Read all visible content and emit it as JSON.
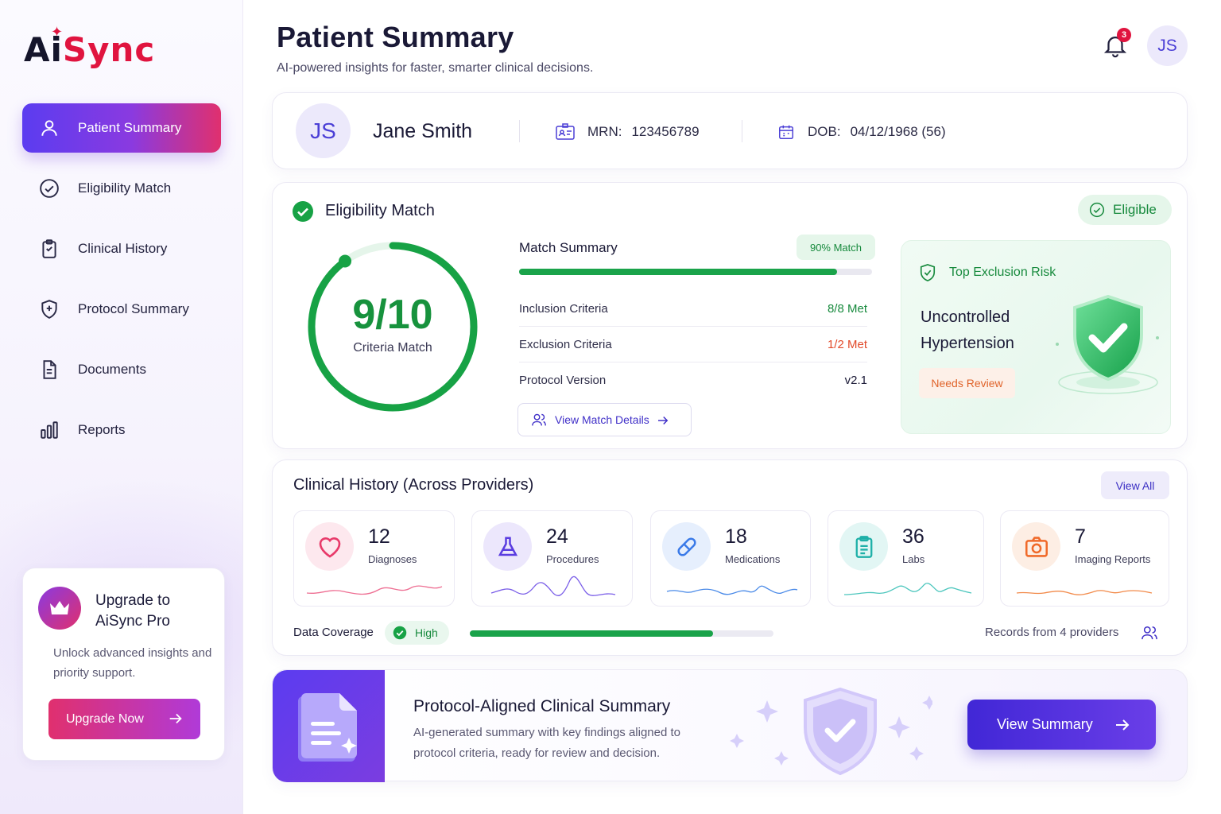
{
  "brand": {
    "ai": "Ai",
    "sync": "Sync",
    "spark": "✦"
  },
  "nav": [
    {
      "label": "Patient Summary",
      "icon": "user-icon",
      "active": true
    },
    {
      "label": "Eligibility Match",
      "icon": "check-circle-icon"
    },
    {
      "label": "Clinical History",
      "icon": "clipboard-icon"
    },
    {
      "label": "Protocol Summary",
      "icon": "shield-icon"
    },
    {
      "label": "Documents",
      "icon": "document-icon"
    },
    {
      "label": "Reports",
      "icon": "bar-chart-icon"
    }
  ],
  "upgrade": {
    "title": "Upgrade to AiSync Pro",
    "desc": "Unlock advanced insights and priority support.",
    "button": "Upgrade Now"
  },
  "header": {
    "title": "Patient Summary",
    "subtitle": "AI-powered insights for faster, smarter clinical decisions.",
    "notification_count": "3",
    "user_initials": "JS"
  },
  "patient": {
    "initials": "JS",
    "name": "Jane Smith",
    "mrn_label": "MRN:",
    "mrn": "123456789",
    "dob_label": "DOB:",
    "dob": "04/12/1968 (56)"
  },
  "eligibility": {
    "title": "Eligibility Match",
    "status": "Eligible",
    "score": "9/10",
    "score_fraction": 0.9,
    "score_label": "Criteria Match",
    "summary_title": "Match Summary",
    "match_badge": "90% Match",
    "match_percent": 90,
    "criteria": [
      {
        "label": "Inclusion Criteria",
        "value": "8/8 Met",
        "tone": "green"
      },
      {
        "label": "Exclusion Criteria",
        "value": "1/2 Met",
        "tone": "red"
      },
      {
        "label": "Protocol Version",
        "value": "v2.1",
        "tone": "dark"
      }
    ],
    "details_button": "View Match Details",
    "risk_title": "Top Exclusion Risk",
    "risk_condition": "Uncontrolled Hypertension",
    "risk_badge": "Needs Review"
  },
  "history": {
    "title": "Clinical History (Across Providers)",
    "view_all": "View All",
    "stats": [
      {
        "count": "12",
        "label": "Diagnoses",
        "icon": "heart-icon",
        "color": "#e83a6a",
        "bg": "#fde8ee"
      },
      {
        "count": "24",
        "label": "Procedures",
        "icon": "flask-icon",
        "color": "#5a3ce0",
        "bg": "#ece7fc"
      },
      {
        "count": "18",
        "label": "Medications",
        "icon": "pill-icon",
        "color": "#3a7ae8",
        "bg": "#e6effd"
      },
      {
        "count": "36",
        "label": "Labs",
        "icon": "clipboard-icon",
        "color": "#1fb0a8",
        "bg": "#e2f6f4"
      },
      {
        "count": "7",
        "label": "Imaging Reports",
        "icon": "camera-icon",
        "color": "#f06a2a",
        "bg": "#fdeee4"
      }
    ],
    "coverage_label": "Data Coverage",
    "coverage_level": "High",
    "coverage_percent": 80,
    "providers": "Records from 4 providers"
  },
  "protocol": {
    "title": "Protocol-Aligned Clinical Summary",
    "desc": "AI-generated summary with key findings aligned to protocol criteria, ready for review and decision.",
    "button": "View Summary"
  }
}
